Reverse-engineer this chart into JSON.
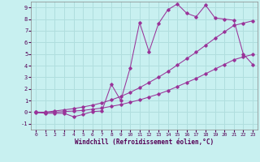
{
  "xlabel": "Windchill (Refroidissement éolien,°C)",
  "bg_color": "#c8f0f0",
  "line_color": "#993399",
  "grid_color": "#b0dede",
  "xlim": [
    -0.5,
    23.5
  ],
  "ylim": [
    -1.5,
    9.5
  ],
  "yticks": [
    -1,
    0,
    1,
    2,
    3,
    4,
    5,
    6,
    7,
    8,
    9
  ],
  "xticks": [
    0,
    1,
    2,
    3,
    4,
    5,
    6,
    7,
    8,
    9,
    10,
    11,
    12,
    13,
    14,
    15,
    16,
    17,
    18,
    19,
    20,
    21,
    22,
    23
  ],
  "line1_x": [
    0,
    1,
    2,
    3,
    4,
    5,
    6,
    7,
    8,
    9,
    10,
    11,
    12,
    13,
    14,
    15,
    16,
    17,
    18,
    19,
    20,
    21,
    22,
    23
  ],
  "line1_y": [
    0.0,
    -0.1,
    -0.1,
    -0.1,
    -0.4,
    -0.2,
    0.05,
    0.1,
    2.4,
    1.0,
    3.8,
    7.7,
    5.2,
    7.6,
    8.8,
    9.3,
    8.5,
    8.2,
    9.2,
    8.1,
    8.0,
    7.9,
    5.0,
    4.1
  ],
  "line2_x": [
    0,
    1,
    2,
    3,
    4,
    5,
    6,
    7,
    8,
    9,
    10,
    11,
    12,
    13,
    14,
    15,
    16,
    17,
    18,
    19,
    20,
    21,
    22,
    23
  ],
  "line2_y": [
    0.0,
    0.0,
    0.1,
    0.2,
    0.3,
    0.45,
    0.6,
    0.8,
    1.05,
    1.35,
    1.7,
    2.1,
    2.55,
    3.0,
    3.5,
    4.05,
    4.6,
    5.15,
    5.75,
    6.35,
    6.9,
    7.45,
    7.65,
    7.85
  ],
  "line3_x": [
    0,
    1,
    2,
    3,
    4,
    5,
    6,
    7,
    8,
    9,
    10,
    11,
    12,
    13,
    14,
    15,
    16,
    17,
    18,
    19,
    20,
    21,
    22,
    23
  ],
  "line3_y": [
    -0.05,
    -0.05,
    0.0,
    0.05,
    0.1,
    0.15,
    0.25,
    0.35,
    0.5,
    0.65,
    0.85,
    1.05,
    1.3,
    1.55,
    1.85,
    2.2,
    2.55,
    2.9,
    3.3,
    3.7,
    4.1,
    4.5,
    4.75,
    4.95
  ]
}
